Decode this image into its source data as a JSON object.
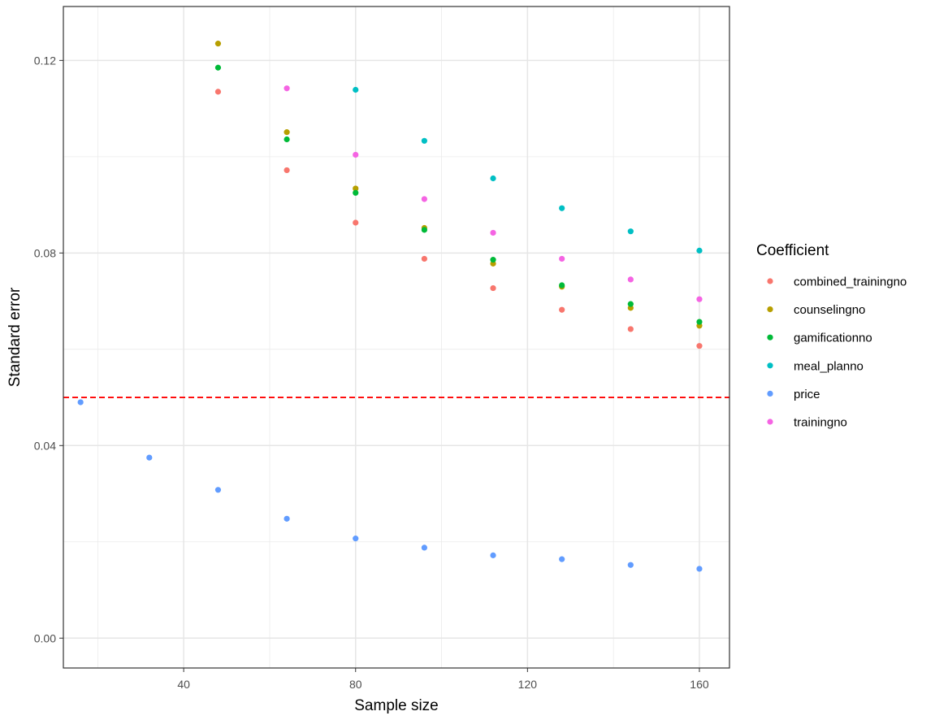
{
  "chart_data": {
    "type": "scatter",
    "title": "",
    "xlabel": "Sample size",
    "ylabel": "Standard error",
    "xlim": [
      12,
      167
    ],
    "ylim": [
      -0.0062,
      0.1312
    ],
    "x_ticks": [
      40,
      80,
      120,
      160
    ],
    "y_ticks": [
      0.0,
      0.04,
      0.08,
      0.12
    ],
    "x_tick_labels": [
      "40",
      "80",
      "120",
      "160"
    ],
    "y_tick_labels": [
      "0.00",
      "0.04",
      "0.08",
      "0.12"
    ],
    "grid": true,
    "reference_line": {
      "y": 0.05,
      "style": "dashed",
      "color": "#ff0000"
    },
    "legend": {
      "title": "Coefficient",
      "position": "right"
    },
    "series": [
      {
        "name": "combined_trainingno",
        "color": "#F8766D",
        "x": [
          48,
          64,
          80,
          96,
          112,
          128,
          144,
          160
        ],
        "y": [
          0.1135,
          0.0972,
          0.0863,
          0.0788,
          0.0727,
          0.0682,
          0.0642,
          0.0607
        ]
      },
      {
        "name": "counselingno",
        "color": "#B79F00",
        "x": [
          48,
          64,
          80,
          96,
          112,
          128,
          144,
          160
        ],
        "y": [
          0.1235,
          0.1051,
          0.0934,
          0.0852,
          0.0778,
          0.073,
          0.0686,
          0.0649
        ]
      },
      {
        "name": "gamificationno",
        "color": "#00BA38",
        "x": [
          48,
          64,
          80,
          96,
          112,
          128,
          144,
          160
        ],
        "y": [
          0.1185,
          0.1036,
          0.0925,
          0.0848,
          0.0786,
          0.0733,
          0.0694,
          0.0657
        ]
      },
      {
        "name": "meal_planno",
        "color": "#00BFC4",
        "x": [
          80,
          96,
          112,
          128,
          144,
          160
        ],
        "y": [
          0.1139,
          0.1033,
          0.0955,
          0.0893,
          0.0845,
          0.0805
        ]
      },
      {
        "name": "price",
        "color": "#619CFF",
        "x": [
          16,
          32,
          48,
          64,
          80,
          96,
          112,
          128,
          144,
          160
        ],
        "y": [
          0.049,
          0.0375,
          0.0308,
          0.0248,
          0.0207,
          0.0188,
          0.0172,
          0.0164,
          0.0152,
          0.0144
        ]
      },
      {
        "name": "trainingno",
        "color": "#F564E3",
        "x": [
          64,
          80,
          96,
          112,
          128,
          144,
          160
        ],
        "y": [
          0.1142,
          0.1004,
          0.0912,
          0.0842,
          0.0788,
          0.0745,
          0.0704
        ]
      }
    ]
  }
}
